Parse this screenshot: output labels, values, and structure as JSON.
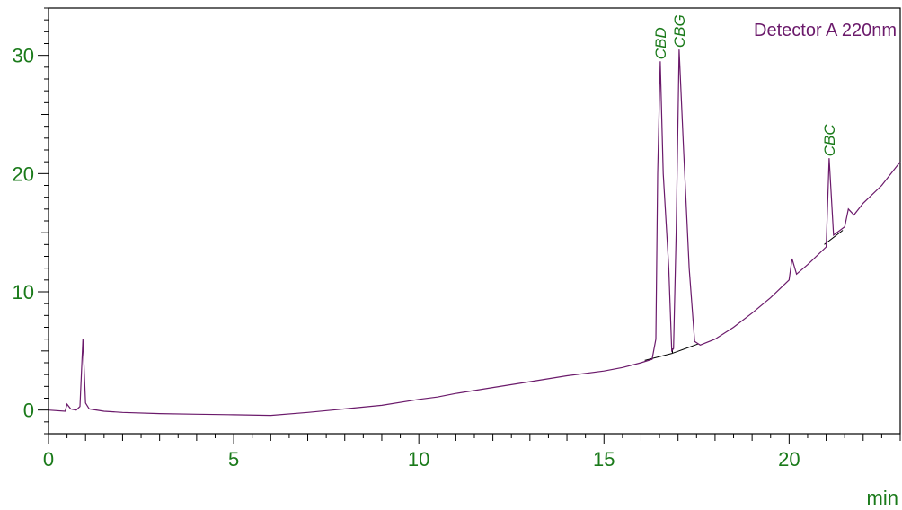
{
  "chart_data": {
    "type": "line",
    "xlabel": "min",
    "ylabel": "",
    "xlim": [
      0,
      23
    ],
    "ylim": [
      -2,
      34
    ],
    "x_ticks": [
      0,
      5,
      10,
      15,
      20
    ],
    "y_ticks": [
      0,
      10,
      20,
      30
    ],
    "grid": false,
    "series": [
      {
        "name": "Detector A 220nm",
        "color": "#6b1a6b",
        "points": [
          [
            0,
            0
          ],
          [
            0.45,
            -0.1
          ],
          [
            0.5,
            0.5
          ],
          [
            0.6,
            0.1
          ],
          [
            0.75,
            0
          ],
          [
            0.85,
            0.3
          ],
          [
            0.93,
            6
          ],
          [
            1.0,
            0.6
          ],
          [
            1.1,
            0.1
          ],
          [
            1.5,
            -0.1
          ],
          [
            2,
            -0.2
          ],
          [
            3,
            -0.3
          ],
          [
            4,
            -0.35
          ],
          [
            5,
            -0.4
          ],
          [
            6,
            -0.45
          ],
          [
            7,
            -0.2
          ],
          [
            8,
            0.1
          ],
          [
            9,
            0.4
          ],
          [
            10,
            0.9
          ],
          [
            10.5,
            1.1
          ],
          [
            11,
            1.4
          ],
          [
            12,
            1.9
          ],
          [
            13,
            2.4
          ],
          [
            14,
            2.9
          ],
          [
            15,
            3.3
          ],
          [
            15.5,
            3.6
          ],
          [
            16,
            4.0
          ],
          [
            16.3,
            4.3
          ],
          [
            16.4,
            6.0
          ],
          [
            16.45,
            20.0
          ],
          [
            16.52,
            29.5
          ],
          [
            16.6,
            20.0
          ],
          [
            16.75,
            12.0
          ],
          [
            16.83,
            5.0
          ],
          [
            16.88,
            5.2
          ],
          [
            16.95,
            15.0
          ],
          [
            17.03,
            30.5
          ],
          [
            17.15,
            22.0
          ],
          [
            17.3,
            12.0
          ],
          [
            17.45,
            5.8
          ],
          [
            17.6,
            5.5
          ],
          [
            18,
            6.0
          ],
          [
            18.5,
            7.0
          ],
          [
            19,
            8.2
          ],
          [
            19.5,
            9.5
          ],
          [
            20,
            11.0
          ],
          [
            20.08,
            12.8
          ],
          [
            20.2,
            11.5
          ],
          [
            20.5,
            12.3
          ],
          [
            21,
            13.8
          ],
          [
            21.08,
            21.3
          ],
          [
            21.2,
            14.8
          ],
          [
            21.5,
            15.5
          ],
          [
            21.6,
            17.0
          ],
          [
            21.75,
            16.5
          ],
          [
            22,
            17.5
          ],
          [
            22.5,
            19.0
          ],
          [
            23,
            21.0
          ]
        ]
      }
    ],
    "baselines": [
      {
        "name": "CBD-baseline",
        "points": [
          [
            16.1,
            4.2
          ],
          [
            16.85,
            4.8
          ]
        ]
      },
      {
        "name": "CBG-baseline",
        "points": [
          [
            16.85,
            4.8
          ],
          [
            17.55,
            5.6
          ]
        ]
      },
      {
        "name": "CBC-baseline",
        "points": [
          [
            20.95,
            14.0
          ],
          [
            21.45,
            15.2
          ]
        ]
      }
    ],
    "dividers": [
      {
        "name": "CBD-CBG-divider",
        "x": 16.85,
        "y_top": 5.2,
        "y_bottom": 4.8
      }
    ],
    "annotations": [
      {
        "text": "Detector A 220nm",
        "position": "top-right"
      },
      {
        "text": "CBD",
        "x": 16.52,
        "y": 29.5
      },
      {
        "text": "CBG",
        "x": 17.03,
        "y": 30.5
      },
      {
        "text": "CBC",
        "x": 21.08,
        "y": 21.3
      }
    ]
  }
}
